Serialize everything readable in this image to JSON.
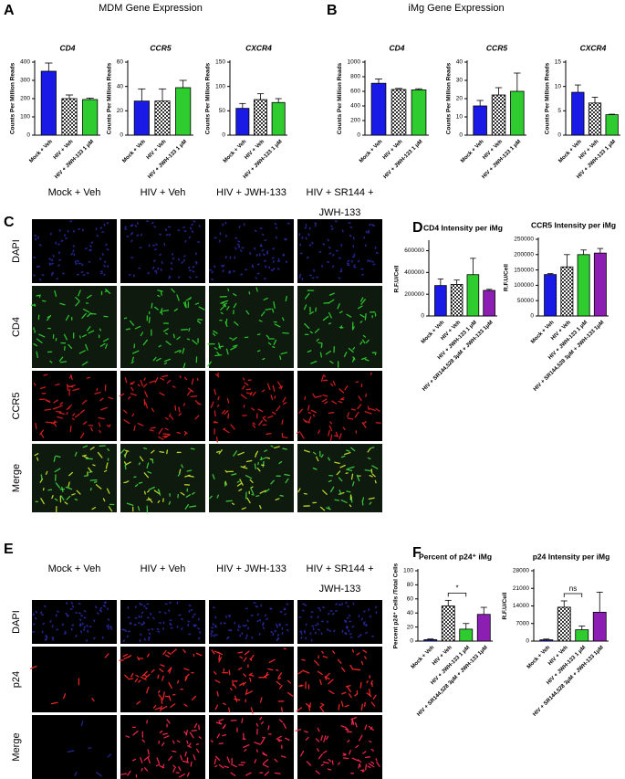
{
  "panel_labels": [
    "A",
    "B",
    "C",
    "D",
    "E",
    "F"
  ],
  "group_titles": [
    "MDM Gene Expression",
    "iMg Gene Expression"
  ],
  "image_panels": [
    {
      "columns": [
        "Mock + Veh",
        "HIV + Veh",
        "HIV + JWH-133",
        "HIV + SR144 + JWH-133"
      ],
      "rows": [
        "DAPI",
        "CD4",
        "CCR5",
        "Merge"
      ],
      "row_colors": [
        "#3355cc",
        "#3a9a3a",
        "#dd2222",
        "#000000"
      ]
    },
    {
      "columns": [
        "Mock + Veh",
        "HIV + Veh",
        "HIV + JWH-133",
        "HIV + SR144 + JWH-133"
      ],
      "rows": [
        "DAPI",
        "p24",
        "Merge"
      ],
      "row_colors": [
        "#3355cc",
        "#dd2222",
        "#000000"
      ]
    }
  ],
  "chart_data": [
    {
      "type": "bar",
      "title": "CD4",
      "ylabel": "Counts Per Million Reads",
      "categories": [
        "Mock + Veh",
        "HIV + Veh",
        "HIV + JWH-133 1 μM"
      ],
      "values": [
        350,
        200,
        195
      ],
      "errors": [
        45,
        20,
        8
      ],
      "colors": [
        "#1a1ae6",
        "checker",
        "#2ecc2e"
      ],
      "ylim": [
        0,
        400
      ],
      "yticks": [
        0,
        100,
        200,
        300,
        400
      ]
    },
    {
      "type": "bar",
      "title": "CCR5",
      "ylabel": "Counts Per Million Reads",
      "categories": [
        "Mock + Veh",
        "HIV + Veh",
        "HIV + JWH-133 1 μM"
      ],
      "values": [
        28,
        28,
        39
      ],
      "errors": [
        10,
        10,
        6
      ],
      "colors": [
        "#1a1ae6",
        "checker",
        "#2ecc2e"
      ],
      "ylim": [
        0,
        60
      ],
      "yticks": [
        0,
        20,
        40,
        60
      ]
    },
    {
      "type": "bar",
      "title": "CXCR4",
      "ylabel": "Counts Per Million Reads",
      "categories": [
        "Mock + Veh",
        "HIV + Veh",
        "HIV + JWH-133 1 μM"
      ],
      "values": [
        55,
        73,
        67
      ],
      "errors": [
        10,
        12,
        8
      ],
      "colors": [
        "#1a1ae6",
        "checker",
        "#2ecc2e"
      ],
      "ylim": [
        0,
        150
      ],
      "yticks": [
        0,
        50,
        100,
        150
      ]
    },
    {
      "type": "bar",
      "title": "CD4",
      "ylabel": "Counts Per Million Reads",
      "categories": [
        "Mock + Veh",
        "HIV + Veh",
        "HIV + JWH-133 1 μM"
      ],
      "values": [
        710,
        625,
        620
      ],
      "errors": [
        60,
        15,
        15
      ],
      "colors": [
        "#1a1ae6",
        "checker",
        "#2ecc2e"
      ],
      "ylim": [
        0,
        1000
      ],
      "yticks": [
        0,
        200,
        400,
        600,
        800,
        1000
      ]
    },
    {
      "type": "bar",
      "title": "CCR5",
      "ylabel": "Counts Per Million Reads",
      "categories": [
        "Mock + Veh",
        "HIV + Veh",
        "HIV + JWH-133 1 μM"
      ],
      "values": [
        16,
        22,
        24
      ],
      "errors": [
        3,
        4,
        10
      ],
      "colors": [
        "#1a1ae6",
        "checker",
        "#2ecc2e"
      ],
      "ylim": [
        0,
        40
      ],
      "yticks": [
        0,
        10,
        20,
        30,
        40
      ]
    },
    {
      "type": "bar",
      "title": "CXCR4",
      "ylabel": "Counts Per Million Reads",
      "categories": [
        "Mock + Veh",
        "HIV + Veh",
        "HIV + JWH-133 1 μM"
      ],
      "values": [
        8.8,
        6.6,
        4.2
      ],
      "errors": [
        1.5,
        1.2,
        0.1
      ],
      "colors": [
        "#1a1ae6",
        "checker",
        "#2ecc2e"
      ],
      "ylim": [
        0,
        15
      ],
      "yticks": [
        0,
        5,
        10,
        15
      ]
    },
    {
      "type": "bar",
      "title": "CD4 Intensity per iMg",
      "ylabel": "R.F.U/Cell",
      "categories": [
        "Mock + Veh",
        "HIV + Veh",
        "HIV + JWH-133 1 μM",
        "HIV + SR144,528 3μM + JWH-133 1μM"
      ],
      "values": [
        280000,
        290000,
        380000,
        235000
      ],
      "errors": [
        60000,
        40000,
        150000,
        10000
      ],
      "colors": [
        "#1a1ae6",
        "checker",
        "#2ecc2e",
        "#8c1eb4"
      ],
      "ylim": [
        0,
        680000
      ],
      "yticks": [
        0,
        200000,
        400000,
        600000
      ]
    },
    {
      "type": "bar",
      "title": "CCR5 Intensity per iMg",
      "ylabel": "R.F.U/Cell",
      "categories": [
        "Mock + Veh",
        "HIV + Veh",
        "HIV + JWH-133 1 μM",
        "HIV + SR144,528 3μM + JWH-133 1μM"
      ],
      "values": [
        135000,
        160000,
        200000,
        205000
      ],
      "errors": [
        3000,
        40000,
        15000,
        15000
      ],
      "colors": [
        "#1a1ae6",
        "checker",
        "#2ecc2e",
        "#8c1eb4"
      ],
      "ylim": [
        0,
        250000
      ],
      "yticks": [
        0,
        50000,
        100000,
        150000,
        200000,
        250000
      ]
    },
    {
      "type": "bar",
      "title": "Percent of p24⁺ iMg",
      "ylabel": "Percent p24⁺ Cells /Total Cells",
      "categories": [
        "Mock + Veh",
        "HIV + Veh",
        "HIV + JWH-133 1 μM",
        "HIV + SR144,528 3μM + JWH-133 1μM"
      ],
      "values": [
        2,
        50,
        17,
        38
      ],
      "errors": [
        1,
        8,
        8,
        10
      ],
      "colors": [
        "#1a1ae6",
        "checker",
        "#2ecc2e",
        "#8c1eb4"
      ],
      "ylim": [
        0,
        100
      ],
      "yticks": [
        0,
        20,
        40,
        60,
        80,
        100
      ],
      "significance": [
        {
          "from": 1,
          "to": 2,
          "label": "*"
        }
      ]
    },
    {
      "type": "bar",
      "title": "p24 Intensity per iMg",
      "ylabel": "R.F.U/Cell",
      "categories": [
        "Mock + Veh",
        "HIV + Veh",
        "HIV + JWH-133 1 μM",
        "HIV + SR144,528 3μM + JWH-133 1μM"
      ],
      "values": [
        500,
        13500,
        4500,
        11500
      ],
      "errors": [
        300,
        2500,
        1500,
        8000
      ],
      "colors": [
        "#1a1ae6",
        "checker",
        "#2ecc2e",
        "#8c1eb4"
      ],
      "ylim": [
        0,
        28000
      ],
      "yticks": [
        0,
        7000,
        14000,
        21000,
        28000
      ],
      "significance": [
        {
          "from": 1,
          "to": 2,
          "label": "ns"
        }
      ]
    }
  ]
}
